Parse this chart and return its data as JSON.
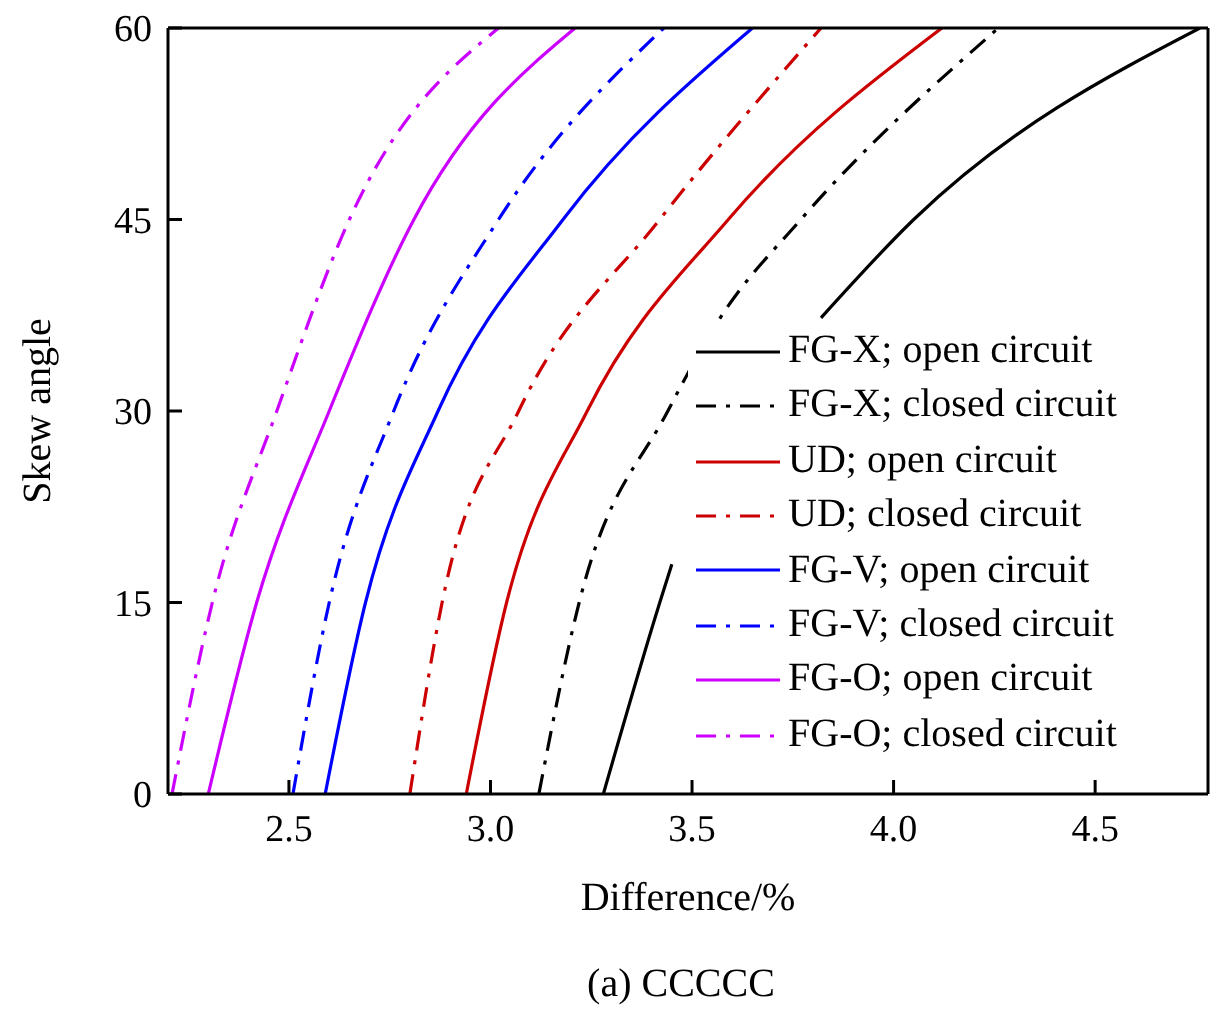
{
  "chart_data": {
    "type": "line",
    "xlabel": "Difference/%",
    "ylabel": "Skew angle",
    "annotations": [
      "(a) CCCCC"
    ],
    "xlim": [
      2.2,
      4.78
    ],
    "ylim": [
      0,
      60
    ],
    "xticks": [
      2.5,
      {
        "value": 3,
        "label": "3.0"
      },
      3.5,
      {
        "value": 4,
        "label": "4.0"
      },
      4.5
    ],
    "yticks": [
      0,
      15,
      30,
      45,
      60
    ],
    "grid": false,
    "legend": "bottom right",
    "marker": "none",
    "series": [
      {
        "name": "FG-X; open circuit",
        "color": "#000000",
        "line_style": "solid",
        "x": [
          3.28,
          3.42,
          3.45,
          null,
          3.82,
          4.05,
          4.76
        ],
        "values": [
          0,
          15,
          18,
          null,
          37.3,
          45,
          60
        ]
      },
      {
        "name": "FG-X; closed circuit",
        "color": "#000000",
        "line_style": "dashed",
        "x": [
          3.12,
          3.22,
          3.44,
          3.57,
          3.77,
          4.26
        ],
        "values": [
          0,
          15,
          30,
          37.3,
          45,
          60
        ]
      },
      {
        "name": "UD; open circuit",
        "color": "#cc0000",
        "line_style": "solid",
        "x": [
          2.94,
          3.04,
          3.24,
          3.59,
          4.12
        ],
        "values": [
          0,
          15,
          30,
          45,
          60
        ]
      },
      {
        "name": "UD; closed circuit",
        "color": "#cc0000",
        "line_style": "dashed",
        "x": [
          2.8,
          2.88,
          3.07,
          3.42,
          3.82
        ],
        "values": [
          0,
          15,
          30,
          45,
          60
        ]
      },
      {
        "name": "FG-V; open circuit",
        "color": "#0000ff",
        "line_style": "solid",
        "x": [
          2.59,
          2.69,
          2.87,
          3.18,
          3.65
        ],
        "values": [
          0,
          15,
          30,
          45,
          60
        ]
      },
      {
        "name": "FG-V; closed circuit",
        "color": "#0000ff",
        "line_style": "dashed",
        "x": [
          2.51,
          2.6,
          2.76,
          3.02,
          3.43
        ],
        "values": [
          0,
          15,
          30,
          45,
          60
        ]
      },
      {
        "name": "FG-O; open circuit",
        "color": "#cc00ff",
        "line_style": "solid",
        "x": [
          2.3,
          2.42,
          2.6,
          2.81,
          3.21
        ],
        "values": [
          0,
          15,
          30,
          45,
          60
        ]
      },
      {
        "name": "FG-O; closed circuit",
        "color": "#cc00ff",
        "line_style": "dashed",
        "x": [
          2.21,
          2.31,
          2.47,
          2.65,
          3.02
        ],
        "values": [
          0,
          15,
          30,
          45,
          60
        ]
      }
    ]
  }
}
